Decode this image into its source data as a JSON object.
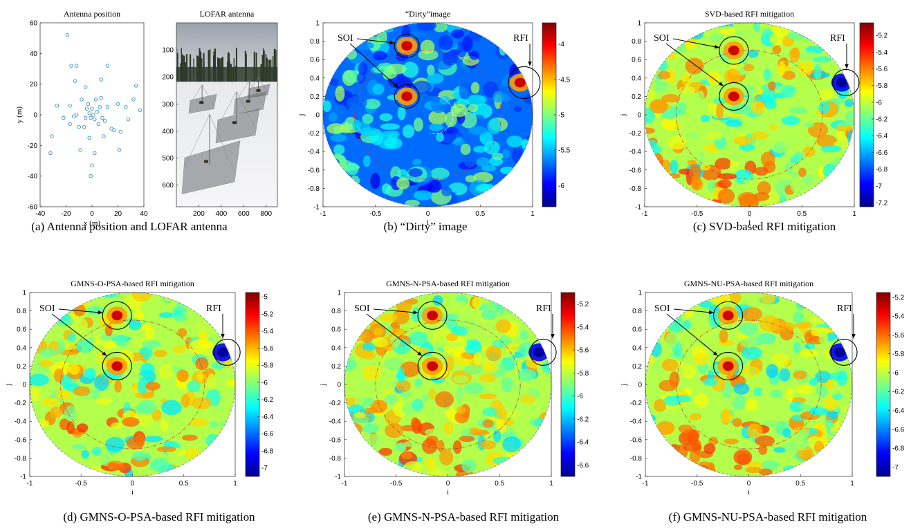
{
  "chart_data": [
    {
      "type": "scatter",
      "title": "Antenna position",
      "xlabel": "x (m)",
      "ylabel": "y (m)",
      "xlim": [
        -40,
        40
      ],
      "ylim": [
        -60,
        60
      ],
      "xticks": [
        "-40",
        "-20",
        "0",
        "20",
        "40"
      ],
      "yticks": [
        "60",
        "40",
        "20",
        "0",
        "-20",
        "-40",
        "-60"
      ],
      "color": "#3a8fc4",
      "points": [
        [
          -19,
          52
        ],
        [
          -16,
          32
        ],
        [
          -12,
          32
        ],
        [
          12,
          32
        ],
        [
          -13,
          22
        ],
        [
          7,
          23
        ],
        [
          34,
          19
        ],
        [
          -27,
          6
        ],
        [
          -31,
          -14
        ],
        [
          -32,
          -25
        ],
        [
          -22,
          -2
        ],
        [
          -17,
          6
        ],
        [
          -14,
          -1
        ],
        [
          -12,
          0
        ],
        [
          -10,
          -8
        ],
        [
          -8,
          10
        ],
        [
          -6,
          -8
        ],
        [
          -5,
          18
        ],
        [
          -4,
          4
        ],
        [
          -3,
          7
        ],
        [
          -2,
          1
        ],
        [
          -1,
          -2
        ],
        [
          0,
          4
        ],
        [
          1,
          0
        ],
        [
          2,
          -3
        ],
        [
          3,
          10
        ],
        [
          4,
          2
        ],
        [
          5,
          -6
        ],
        [
          6,
          5
        ],
        [
          7,
          11
        ],
        [
          8,
          -2
        ],
        [
          10,
          -4
        ],
        [
          12,
          5
        ],
        [
          15,
          -9
        ],
        [
          17,
          -10
        ],
        [
          20,
          7
        ],
        [
          22,
          -11
        ],
        [
          26,
          5
        ],
        [
          -9,
          -23
        ],
        [
          -2,
          -15
        ],
        [
          2,
          -25
        ],
        [
          0,
          -33
        ],
        [
          -1,
          -40
        ],
        [
          21,
          -23
        ],
        [
          28,
          -3
        ],
        [
          37,
          3
        ],
        [
          32,
          10
        ],
        [
          -17,
          -6
        ],
        [
          -5,
          -2
        ],
        [
          9,
          -14
        ]
      ]
    },
    {
      "type": "image",
      "title": "LOFAR antenna",
      "xticks": [
        "200",
        "400",
        "600",
        "800"
      ],
      "yticks": [
        "100",
        "200",
        "300",
        "400",
        "500",
        "600"
      ],
      "xlim": [
        0,
        900
      ],
      "ylim": [
        0,
        680
      ]
    },
    {
      "type": "heatmap",
      "title": "“Dirty”image",
      "xlabel": "i",
      "ylabel": "j",
      "xlim": [
        -1,
        1
      ],
      "ylim": [
        -1,
        1
      ],
      "xticks": [
        "-1",
        "-0.5",
        "0",
        "0.5",
        "1"
      ],
      "yticks": [
        "1",
        "0.8",
        "0.6",
        "0.4",
        "0.2",
        "0",
        "-0.2",
        "-0.4",
        "-0.6",
        "-0.8",
        "-1"
      ],
      "colorbar_ticks": [
        "-4",
        "-4.5",
        "-5",
        "-5.5",
        "-6"
      ],
      "colorbar_range": [
        -6.3,
        -3.7
      ],
      "annotations": [
        "SOI",
        "RFI"
      ],
      "sources": [
        [
          -0.2,
          0.75,
          "hot"
        ],
        [
          -0.2,
          0.2,
          "hot"
        ],
        [
          0.88,
          0.35,
          "hot"
        ]
      ]
    },
    {
      "type": "heatmap",
      "title": "SVD-based RFI mitigation",
      "xlabel": "i",
      "ylabel": "j",
      "xlim": [
        -1,
        1
      ],
      "ylim": [
        -1,
        1
      ],
      "xticks": [
        "-1",
        "-0.5",
        "0",
        "0.5",
        "1"
      ],
      "yticks": [
        "1",
        "0.8",
        "0.6",
        "0.4",
        "0.2",
        "0",
        "-0.2",
        "-0.4",
        "-0.6",
        "-0.8",
        "-1"
      ],
      "colorbar_ticks": [
        "-5.2",
        "-5.4",
        "-5.6",
        "-5.8",
        "-6",
        "-6.2",
        "-6.4",
        "-6.6",
        "-6.8",
        "-7",
        "-7.2"
      ],
      "colorbar_range": [
        -7.25,
        -5.05
      ],
      "annotations": [
        "SOI",
        "RFI"
      ],
      "sources": [
        [
          -0.15,
          0.7,
          "hot"
        ],
        [
          -0.15,
          0.2,
          "hot"
        ],
        [
          0.88,
          0.35,
          "cold"
        ]
      ]
    },
    {
      "type": "heatmap",
      "title": "GMNS-O-PSA-based RFI mitigation",
      "xlabel": "i",
      "ylabel": "j",
      "xlim": [
        -1,
        1
      ],
      "ylim": [
        -1,
        1
      ],
      "xticks": [
        "-1",
        "-0.5",
        "0",
        "0.5",
        "1"
      ],
      "yticks": [
        "1",
        "0.8",
        "0.6",
        "0.4",
        "0.2",
        "0",
        "-0.2",
        "-0.4",
        "-0.6",
        "-0.8",
        "-1"
      ],
      "colorbar_ticks": [
        "-5",
        "-5.2",
        "-5.4",
        "-5.6",
        "-5.8",
        "-6",
        "-6.2",
        "-6.4",
        "-6.6",
        "-6.8",
        "-7"
      ],
      "colorbar_range": [
        -7.1,
        -4.95
      ],
      "annotations": [
        "SOI",
        "RFI"
      ],
      "sources": [
        [
          -0.15,
          0.75,
          "hot"
        ],
        [
          -0.15,
          0.2,
          "hot"
        ],
        [
          0.88,
          0.35,
          "cold"
        ]
      ]
    },
    {
      "type": "heatmap",
      "title": "GMNS-N-PSA-based RFI mitigation",
      "xlabel": "i",
      "ylabel": "j",
      "xlim": [
        -1,
        1
      ],
      "ylim": [
        -1,
        1
      ],
      "xticks": [
        "-1",
        "-0.5",
        "0",
        "0.5",
        "1"
      ],
      "yticks": [
        "1",
        "0.8",
        "0.6",
        "0.4",
        "0.2",
        "0",
        "-0.2",
        "-0.4",
        "-0.6",
        "-0.8",
        "-1"
      ],
      "colorbar_ticks": [
        "-5.2",
        "-5.4",
        "-5.6",
        "-5.8",
        "-6",
        "-6.2",
        "-6.4",
        "-6.6"
      ],
      "colorbar_range": [
        -6.7,
        -5.1
      ],
      "annotations": [
        "SOI",
        "RFI"
      ],
      "sources": [
        [
          -0.15,
          0.75,
          "hot"
        ],
        [
          -0.15,
          0.2,
          "hot"
        ],
        [
          0.88,
          0.35,
          "cold"
        ]
      ]
    },
    {
      "type": "heatmap",
      "title": "GMNS-NU-PSA-based RFI mitigation",
      "xlabel": "i",
      "ylabel": "j",
      "xlim": [
        -1,
        1
      ],
      "ylim": [
        -1,
        1
      ],
      "xticks": [
        "-1",
        "-0.5",
        "0",
        "0.5",
        "1"
      ],
      "yticks": [
        "1",
        "0.8",
        "0.6",
        "0.4",
        "0.2",
        "0",
        "-0.2",
        "-0.4",
        "-0.6",
        "-0.8",
        "-1"
      ],
      "colorbar_ticks": [
        "-5.2",
        "-5.4",
        "-5.6",
        "-5.8",
        "-6",
        "-6.2",
        "-6.4",
        "-6.6",
        "-6.8",
        "-7"
      ],
      "colorbar_range": [
        -7.1,
        -5.15
      ],
      "annotations": [
        "SOI",
        "RFI"
      ],
      "sources": [
        [
          -0.2,
          0.75,
          "hot"
        ],
        [
          -0.2,
          0.2,
          "hot"
        ],
        [
          0.88,
          0.35,
          "cold"
        ]
      ]
    }
  ],
  "captions": {
    "a": "(a) Antenna position and LOFAR antenna",
    "b": "(b) “Dirty” image",
    "c": "(c) SVD-based RFI mitigation",
    "d": "(d) GMNS-O-PSA-based RFI mitigation",
    "e": "(e) GMNS-N-PSA-based RFI mitigation",
    "f": "(f) GMNS-NU-PSA-based RFI mitigation"
  }
}
